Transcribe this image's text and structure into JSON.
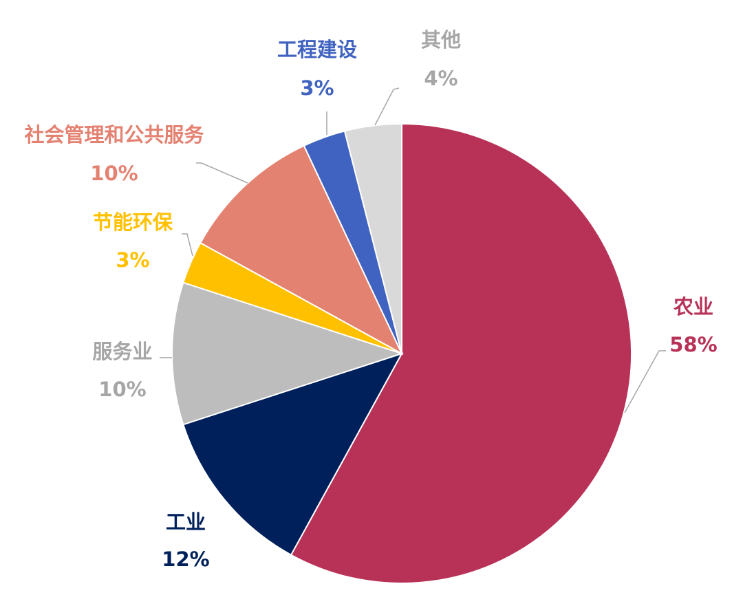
{
  "chart_data": {
    "type": "pie",
    "title": "",
    "start_angle_deg": 0,
    "direction": "clockwise",
    "slices": [
      {
        "label": "农业",
        "value": 58,
        "value_label": "58%",
        "color": "#B83257"
      },
      {
        "label": "工业",
        "value": 12,
        "value_label": "12%",
        "color": "#00205C"
      },
      {
        "label": "服务业",
        "value": 10,
        "value_label": "10%",
        "color": "#BDBDBD"
      },
      {
        "label": "节能环保",
        "value": 3,
        "value_label": "3%",
        "color": "#FFC000"
      },
      {
        "label": "社会管理和公共服务",
        "value": 10,
        "value_label": "10%",
        "color": "#E48272"
      },
      {
        "label": "工程建设",
        "value": 3,
        "value_label": "3%",
        "color": "#4063C1"
      },
      {
        "label": "其他",
        "value": 4,
        "value_label": "4%",
        "color": "#D9D9D9"
      }
    ],
    "label_colors": [
      "#B83257",
      "#00205C",
      "#A6A6A6",
      "#FFC000",
      "#E48272",
      "#4063C1",
      "#A6A6A6"
    ],
    "leader_line_color": "#A6A6A6"
  }
}
